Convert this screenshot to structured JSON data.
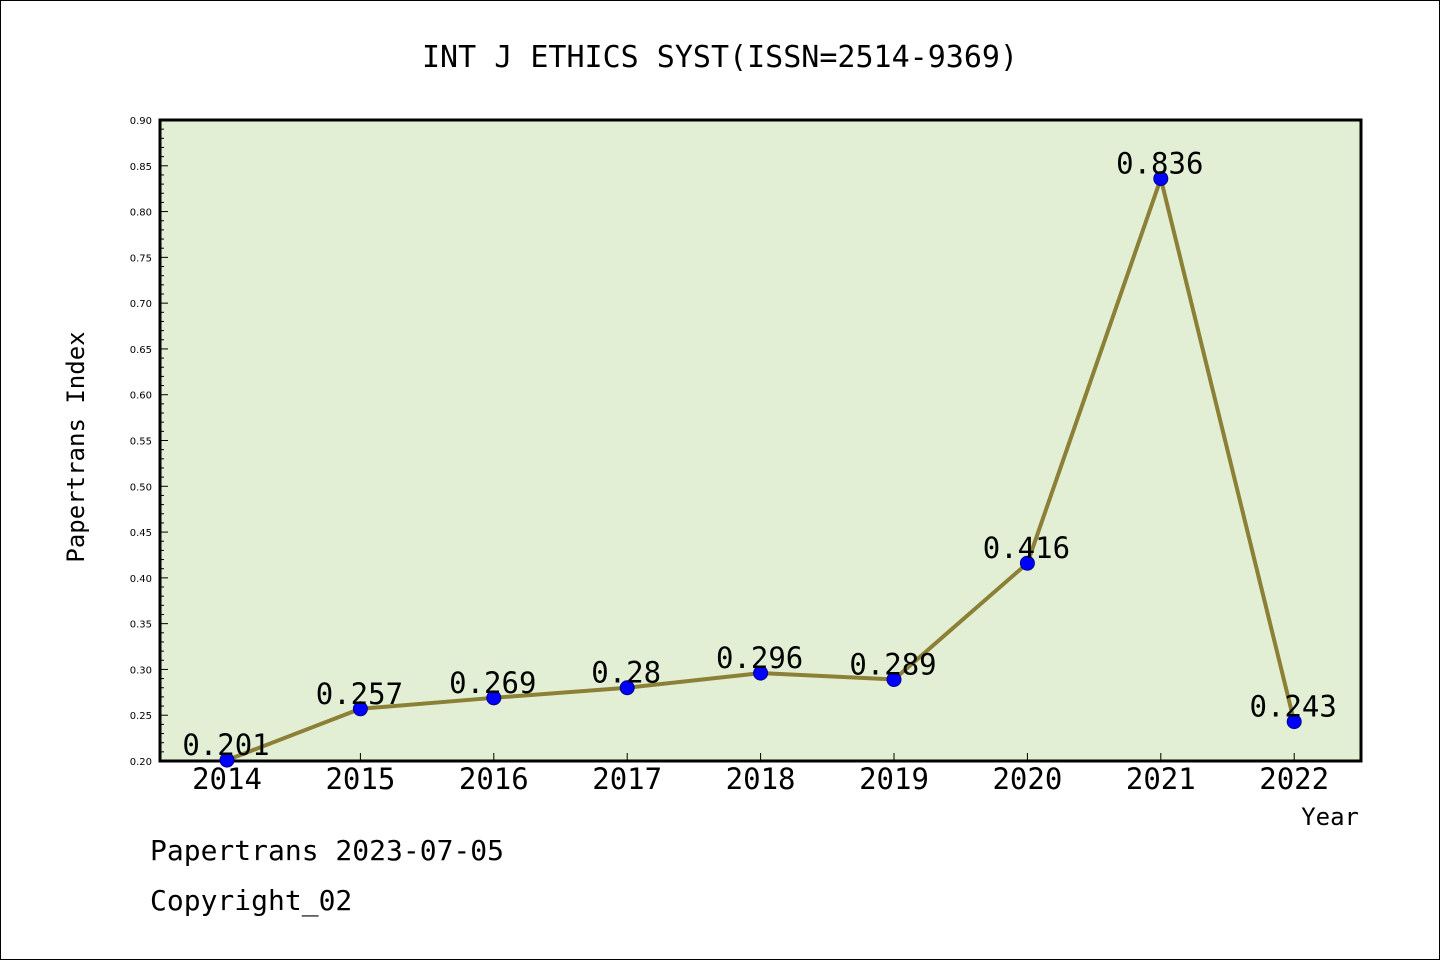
{
  "colors": {
    "plot_background": "#e2efd5",
    "line": "#8b8036",
    "marker_fill": "#0000ff",
    "marker_stroke": "#00008b"
  },
  "chart_data": {
    "type": "line",
    "title": "INT J ETHICS SYST(ISSN=2514-9369)",
    "xlabel": "Year",
    "ylabel": "Papertrans Index",
    "categories": [
      "2014",
      "2015",
      "2016",
      "2017",
      "2018",
      "2019",
      "2020",
      "2021",
      "2022"
    ],
    "series": [
      {
        "values": [
          0.201,
          0.257,
          0.269,
          0.28,
          0.296,
          0.289,
          0.416,
          0.836,
          0.243
        ]
      }
    ],
    "data_labels": [
      "0.201",
      "0.257",
      "0.269",
      "0.28",
      "0.296",
      "0.289",
      "0.416",
      "0.836",
      "0.243"
    ],
    "ylim": [
      0.2,
      0.9
    ],
    "yticks": [
      "0.20",
      "0.25",
      "0.30",
      "0.35",
      "0.40",
      "0.45",
      "0.50",
      "0.55",
      "0.60",
      "0.65",
      "0.70",
      "0.75",
      "0.80",
      "0.85",
      "0.90"
    ],
    "grid": false,
    "legend": "none"
  },
  "footer": {
    "source_line": "Papertrans 2023-07-05",
    "copyright_line": "Copyright_02"
  }
}
